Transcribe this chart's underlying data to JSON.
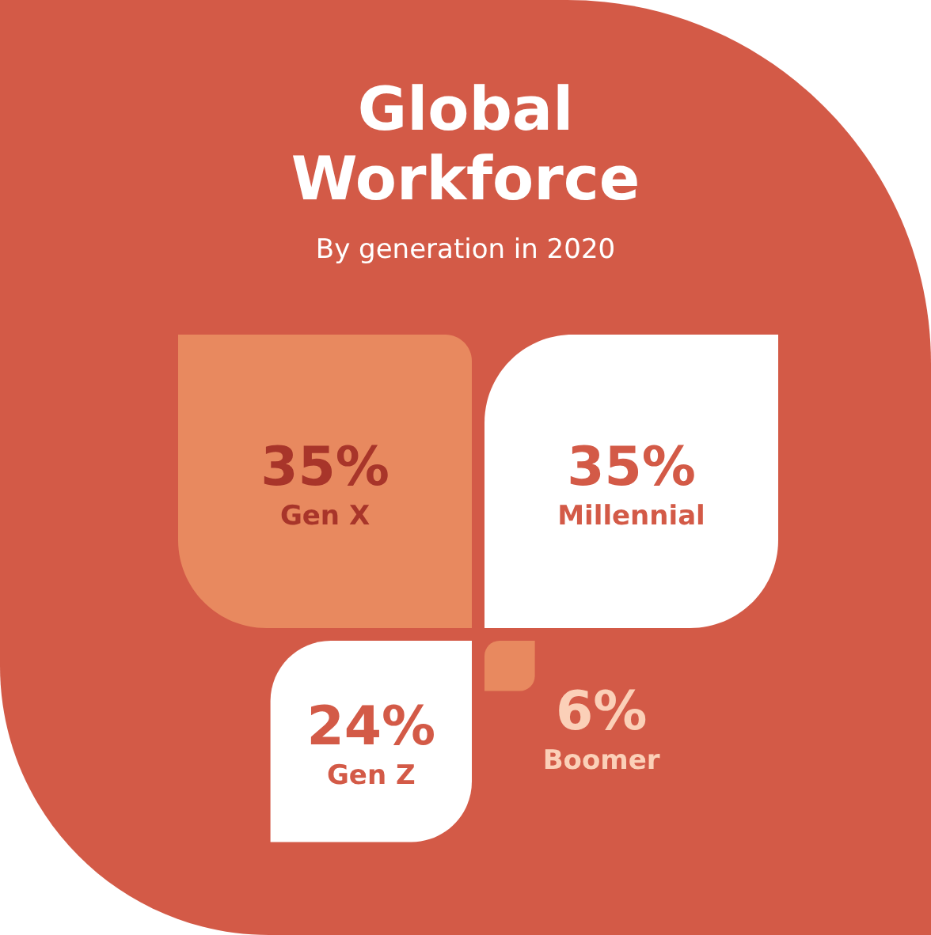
{
  "chart_data": {
    "type": "other",
    "title": "Global Workforce",
    "subtitle": "By generation in 2020",
    "categories": [
      "Gen X",
      "Millennial",
      "Gen Z",
      "Boomer"
    ],
    "values": [
      35,
      35,
      24,
      6
    ],
    "value_labels": [
      "35%",
      "35%",
      "24%",
      "6%"
    ],
    "colors": [
      "#e8895f",
      "#ffffff",
      "#ffffff",
      "#e8895f"
    ]
  }
}
